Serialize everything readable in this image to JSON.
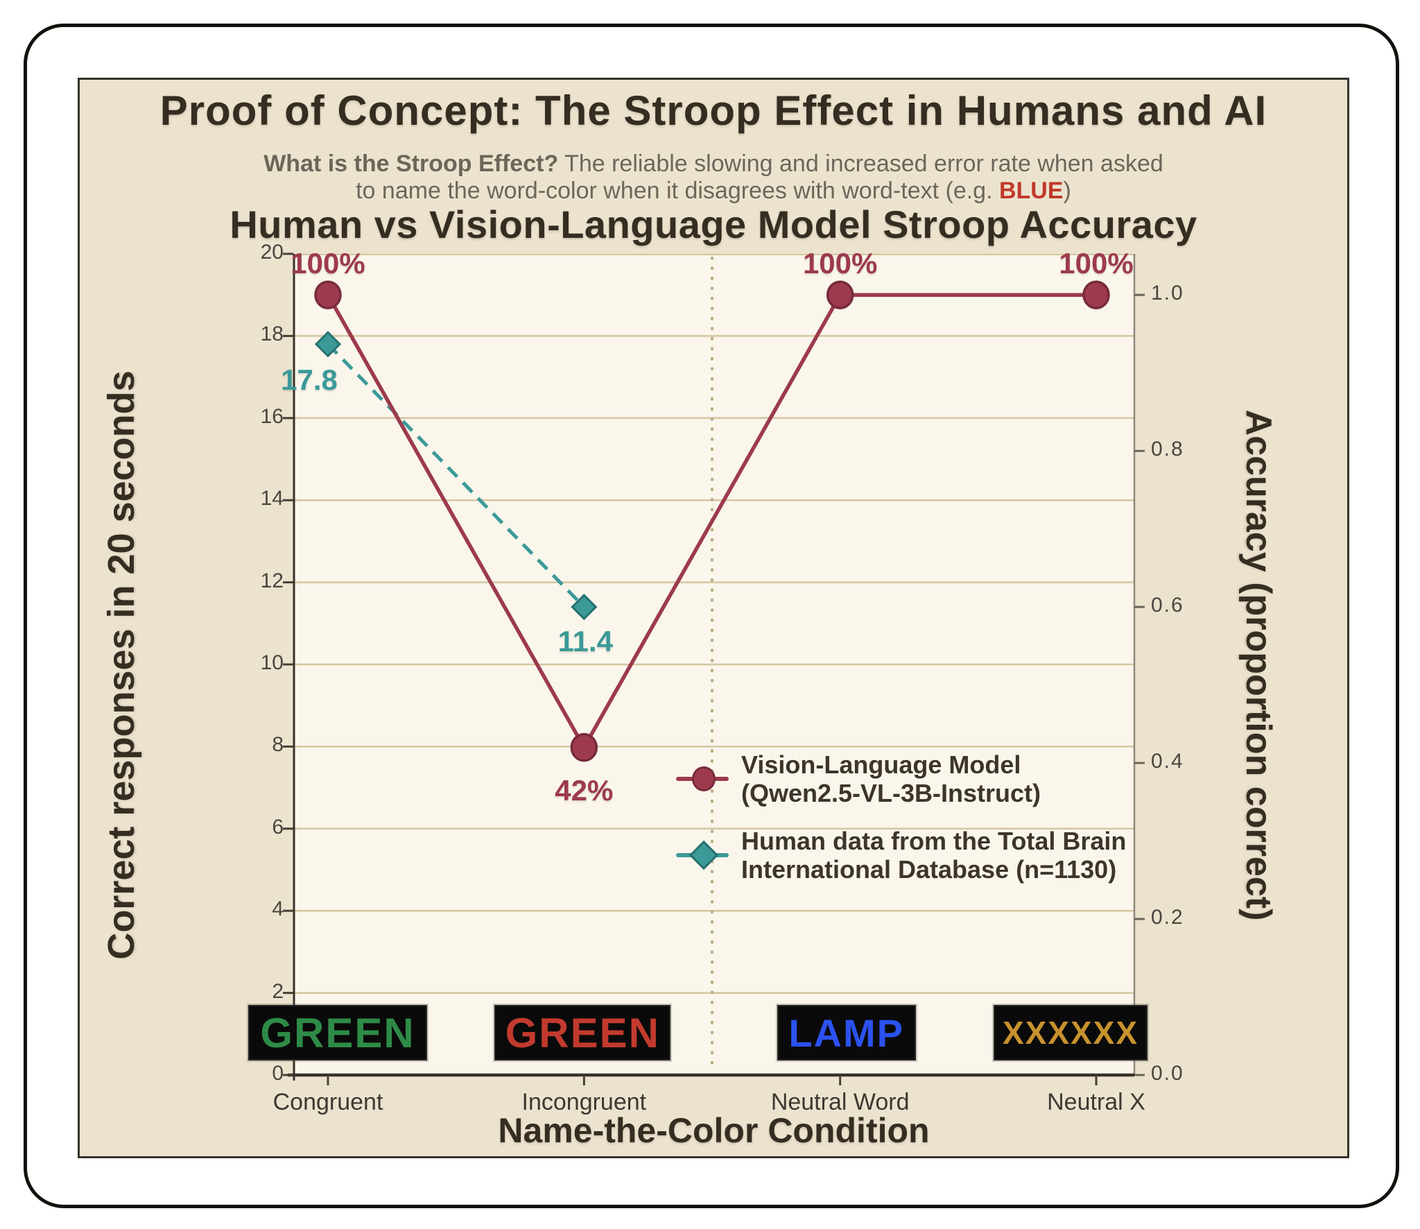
{
  "header": {
    "title": "Proof of Concept: The Stroop Effect in Humans and AI",
    "subtitle_lead": "What is the Stroop Effect?",
    "subtitle_line1": "The reliable slowing and increased error rate when asked",
    "subtitle_line2": "to name the word-color when it disagrees with word-text (e.g.",
    "subtitle_example_word": "BLUE",
    "subtitle_close": ")"
  },
  "legend": {
    "vlm_line1": "Vision-Language Model",
    "vlm_line2": "(Qwen2.5-VL-3B-Instruct)",
    "human_line1": "Human data from the Total Brain",
    "human_line2": "International Database (n=1130)"
  },
  "colors": {
    "vlm": "#9d3a4d",
    "vlm_edge": "#772b3b",
    "human": "#3b9a98",
    "human_edge": "#27716f",
    "grid": "#d3c69e",
    "separator": "#bfae85",
    "spine": "#38322b",
    "tick": "#474039",
    "right_tick": "#6b6357",
    "right_spine": "#8f8779",
    "panel_bg": "#ece3cf",
    "plot_bg": "#faf6ec",
    "highlight_red": "#c0392b"
  },
  "chart_data": {
    "type": "line",
    "title": "Human vs Vision-Language Model Stroop Accuracy",
    "xlabel": "Name-the-Color Condition",
    "ylabel_left": "Correct responses in 20 seconds",
    "ylabel_right": "Accuracy (proportion correct)",
    "categories": [
      "Congruent",
      "Incongruent",
      "Neutral Word",
      "Neutral X"
    ],
    "left_axis": {
      "min": 0,
      "max": 20,
      "step": 2
    },
    "right_axis": {
      "min": 0.0,
      "max": 1.0,
      "step": 0.2,
      "labels": [
        "0.0",
        "0.2",
        "0.4",
        "0.6",
        "0.8",
        "1.0"
      ],
      "one_maps_to_left_value": 19
    },
    "grid": "horizontal",
    "separator_between": [
      "Incongruent",
      "Neutral Word"
    ],
    "legend_position": "center-right",
    "series": [
      {
        "name": "Vision-Language Model (Qwen2.5-VL-3B-Instruct)",
        "axis": "right",
        "marker": "circle",
        "line_style": "solid",
        "color": "#9d3a4d",
        "values": [
          1.0,
          0.42,
          1.0,
          1.0
        ],
        "point_labels": [
          "100%",
          "42%",
          "100%",
          "100%"
        ]
      },
      {
        "name": "Human data from the Total Brain International Database (n=1130)",
        "axis": "left",
        "marker": "diamond",
        "line_style": "dashed",
        "color": "#3b9a98",
        "values": [
          17.8,
          11.4,
          null,
          null
        ],
        "point_labels": [
          "17.8",
          "11.4",
          "",
          ""
        ]
      }
    ],
    "stimuli": [
      {
        "word": "GREEN",
        "ink": "#2e8b47",
        "background": "#0a0a0a"
      },
      {
        "word": "GREEN",
        "ink": "#c23a2e",
        "background": "#0a0a0a"
      },
      {
        "word": "LAMP",
        "ink": "#2b52f0",
        "background": "#0a0a0a"
      },
      {
        "word": "XXXXXX",
        "ink": "#c8922e",
        "background": "#0a0a0a"
      }
    ]
  }
}
